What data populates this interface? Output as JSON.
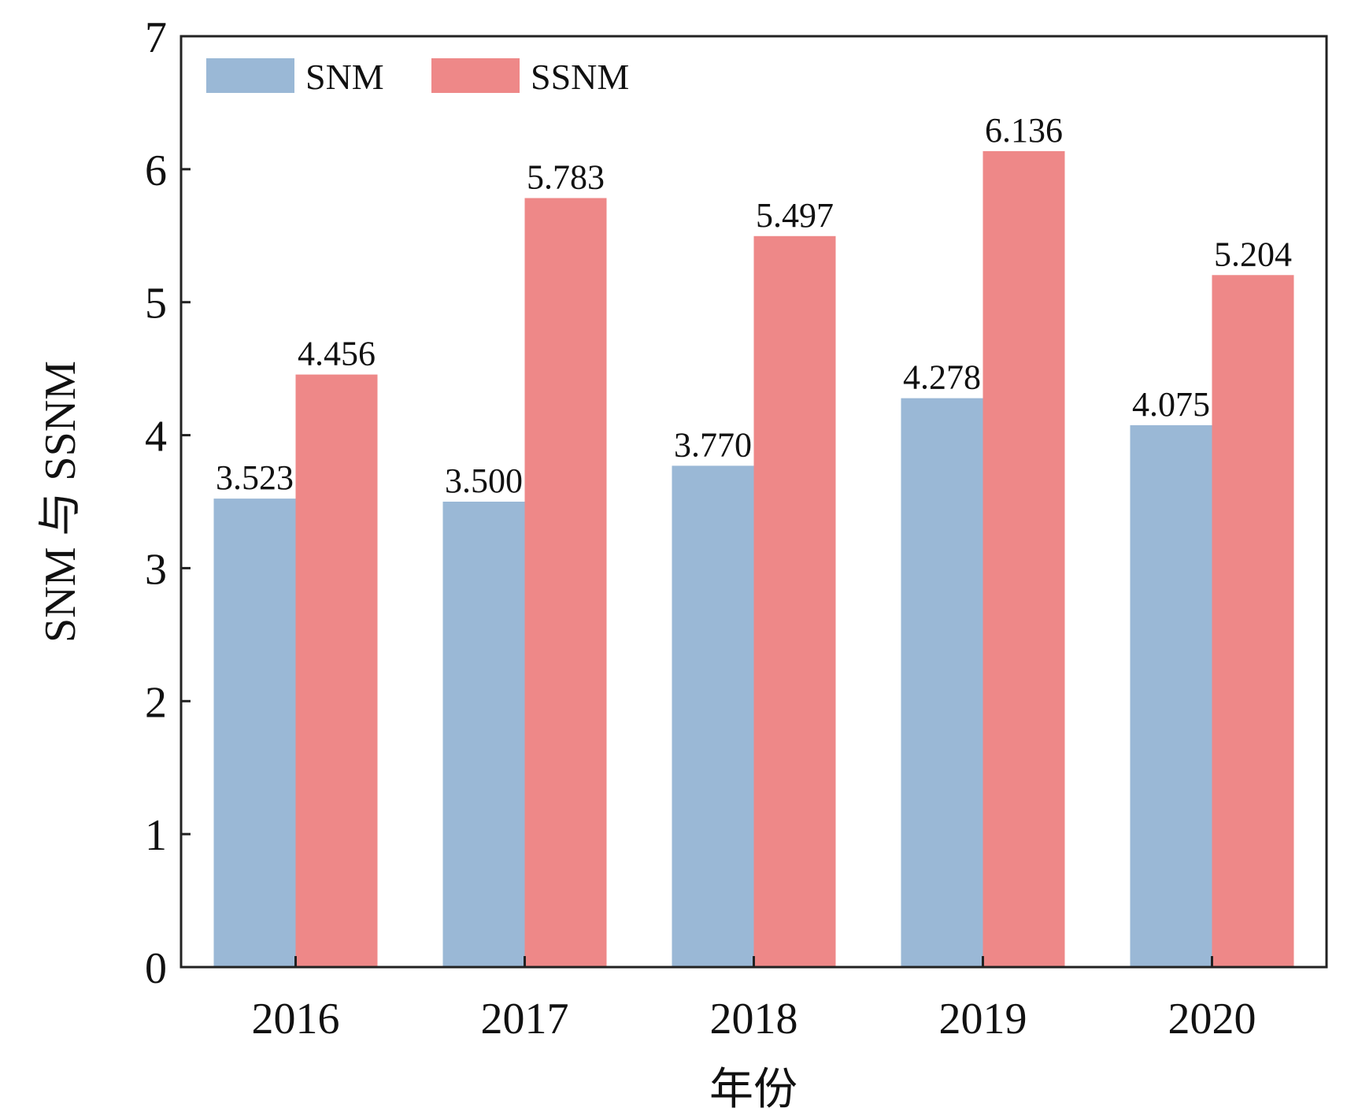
{
  "chart_data": {
    "type": "bar",
    "title": "",
    "xlabel": "年份",
    "ylabel": "SNM 与 SSNM",
    "categories": [
      "2016",
      "2017",
      "2018",
      "2019",
      "2020"
    ],
    "ylim": [
      0,
      7
    ],
    "yticks": [
      0,
      1,
      2,
      3,
      4,
      5,
      6,
      7
    ],
    "grid": false,
    "legend_position": "top-left",
    "series": [
      {
        "name": "SNM",
        "color": "#9ab8d6",
        "values": [
          3.523,
          3.5,
          3.77,
          4.278,
          4.075
        ],
        "labels": [
          "3.523",
          "3.500",
          "3.770",
          "4.278",
          "4.075"
        ]
      },
      {
        "name": "SSNM",
        "color": "#ee8888",
        "values": [
          4.456,
          5.783,
          5.497,
          6.136,
          5.204
        ],
        "labels": [
          "4.456",
          "5.783",
          "5.497",
          "6.136",
          "5.204"
        ]
      }
    ]
  }
}
